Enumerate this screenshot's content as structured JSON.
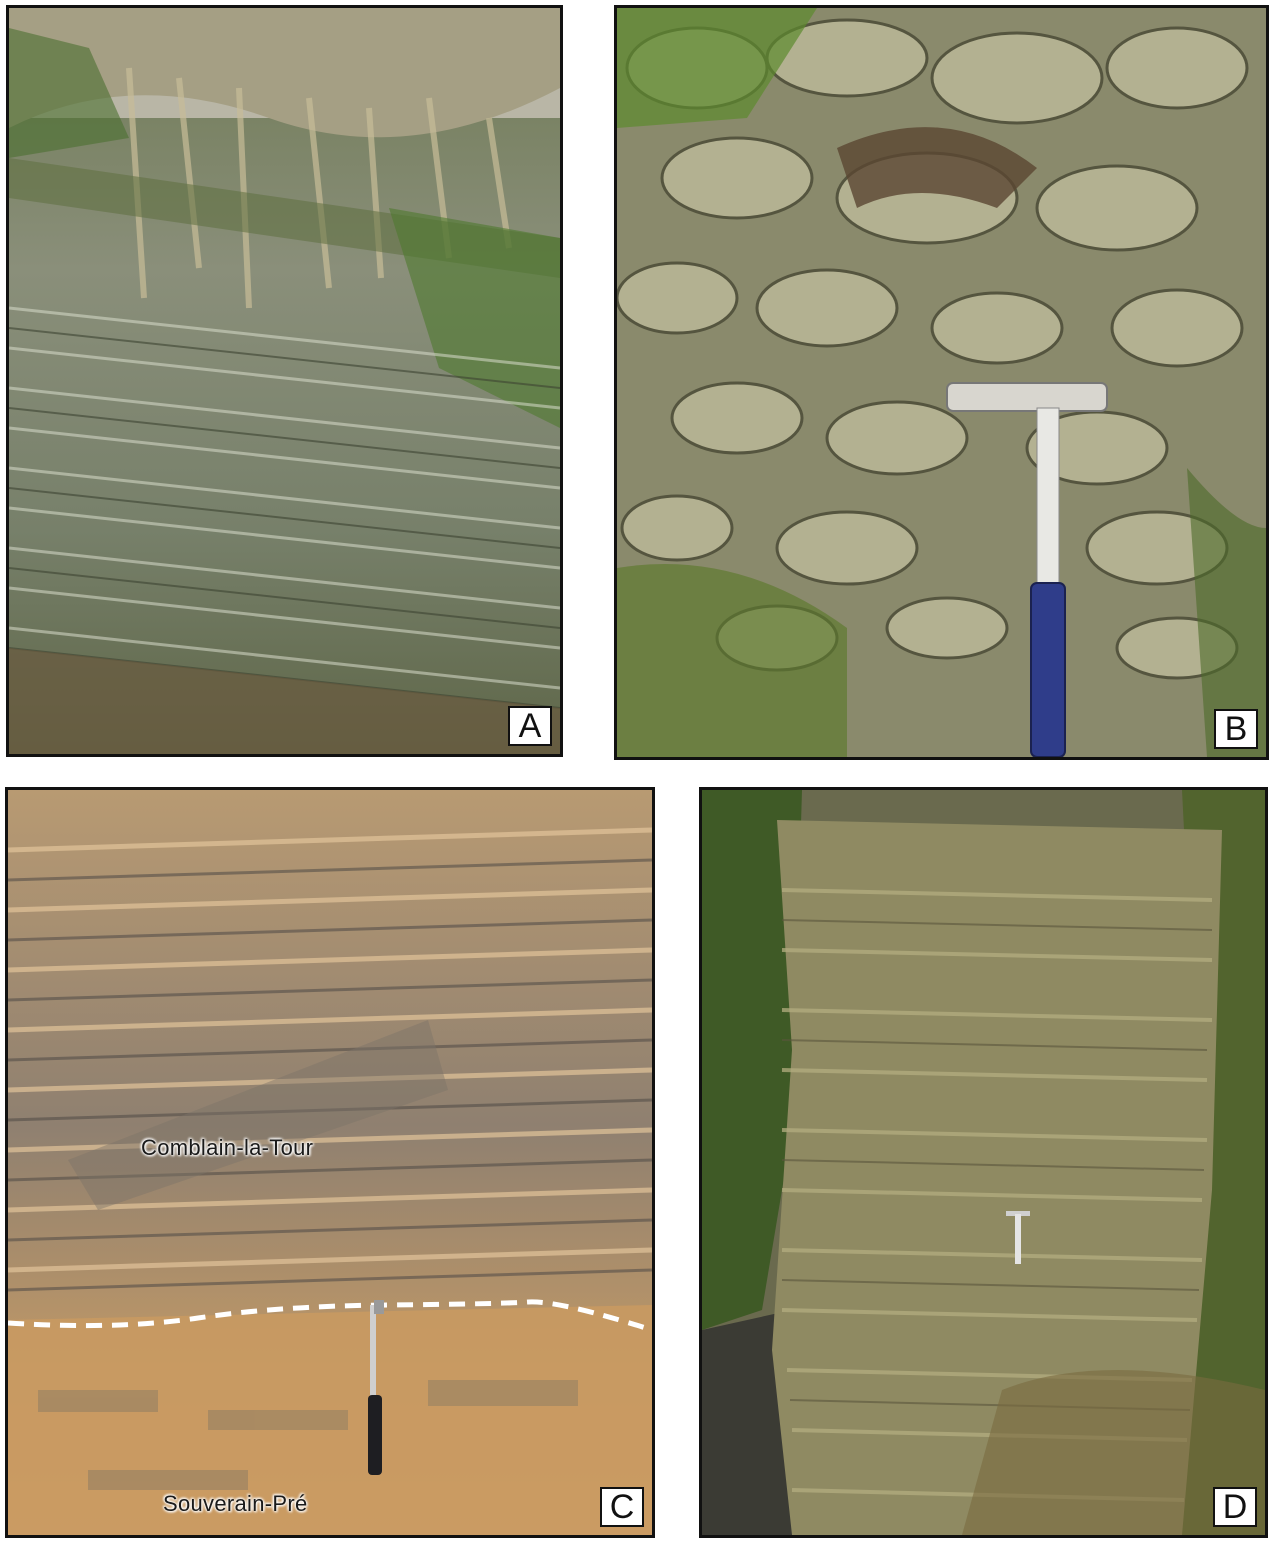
{
  "panels": [
    {
      "letter": "A",
      "icon": "layered-shale-outcrop-photo"
    },
    {
      "letter": "B",
      "icon": "nodular-limestone-outcrop-with-hammer-photo"
    },
    {
      "letter": "C",
      "icon": "bedded-sandstone-outcrop-with-contact-photo"
    },
    {
      "letter": "D",
      "icon": "thick-bedded-sandstone-cliff-with-hammer-photo"
    }
  ],
  "panel_c_labels": {
    "upper": "Comblain-la-Tour",
    "lower": "Souverain-Pré"
  },
  "colors": {
    "frame": "#111111",
    "contact_line": "#ffffff"
  }
}
